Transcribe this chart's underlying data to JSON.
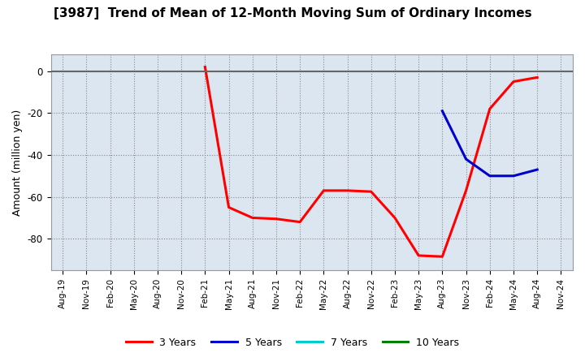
{
  "title": "[3987]  Trend of Mean of 12-Month Moving Sum of Ordinary Incomes",
  "ylabel": "Amount (million yen)",
  "ylim": [
    -95,
    8
  ],
  "yticks": [
    0,
    -20,
    -40,
    -60,
    -80
  ],
  "background_color": "#ffffff",
  "plot_bg_color": "#dce6f0",
  "grid_color": "#aaaaaa",
  "x_labels": [
    "Aug-19",
    "Nov-19",
    "Feb-20",
    "May-20",
    "Aug-20",
    "Nov-20",
    "Feb-21",
    "May-21",
    "Aug-21",
    "Nov-21",
    "Feb-22",
    "May-22",
    "Aug-22",
    "Nov-22",
    "Feb-23",
    "May-23",
    "Aug-23",
    "Nov-23",
    "Feb-24",
    "May-24",
    "Aug-24",
    "Nov-24"
  ],
  "series": [
    {
      "name": "3 Years",
      "color": "#ff0000",
      "linewidth": 2.2,
      "y": [
        null,
        null,
        null,
        null,
        null,
        null,
        2.0,
        -65.0,
        -70.0,
        -70.5,
        -72.0,
        -57.0,
        -57.0,
        -57.5,
        -70.0,
        -88.0,
        -88.5,
        -57.0,
        -18.0,
        -5.0,
        -3.0,
        null
      ]
    },
    {
      "name": "5 Years",
      "color": "#0000cc",
      "linewidth": 2.2,
      "y": [
        null,
        null,
        null,
        null,
        null,
        null,
        null,
        null,
        null,
        null,
        null,
        null,
        null,
        null,
        null,
        null,
        -19.0,
        -42.0,
        -50.0,
        -50.0,
        -47.0,
        null
      ]
    },
    {
      "name": "7 Years",
      "color": "#00cccc",
      "linewidth": 2.2,
      "y": [
        null,
        null,
        null,
        null,
        null,
        null,
        null,
        null,
        null,
        null,
        null,
        null,
        null,
        null,
        null,
        null,
        null,
        null,
        null,
        null,
        null,
        null
      ]
    },
    {
      "name": "10 Years",
      "color": "#008000",
      "linewidth": 2.2,
      "y": [
        null,
        null,
        null,
        null,
        null,
        null,
        null,
        null,
        null,
        null,
        null,
        null,
        null,
        null,
        null,
        null,
        null,
        null,
        null,
        null,
        null,
        null
      ]
    }
  ],
  "legend_loc": "lower center",
  "legend_ncol": 4
}
